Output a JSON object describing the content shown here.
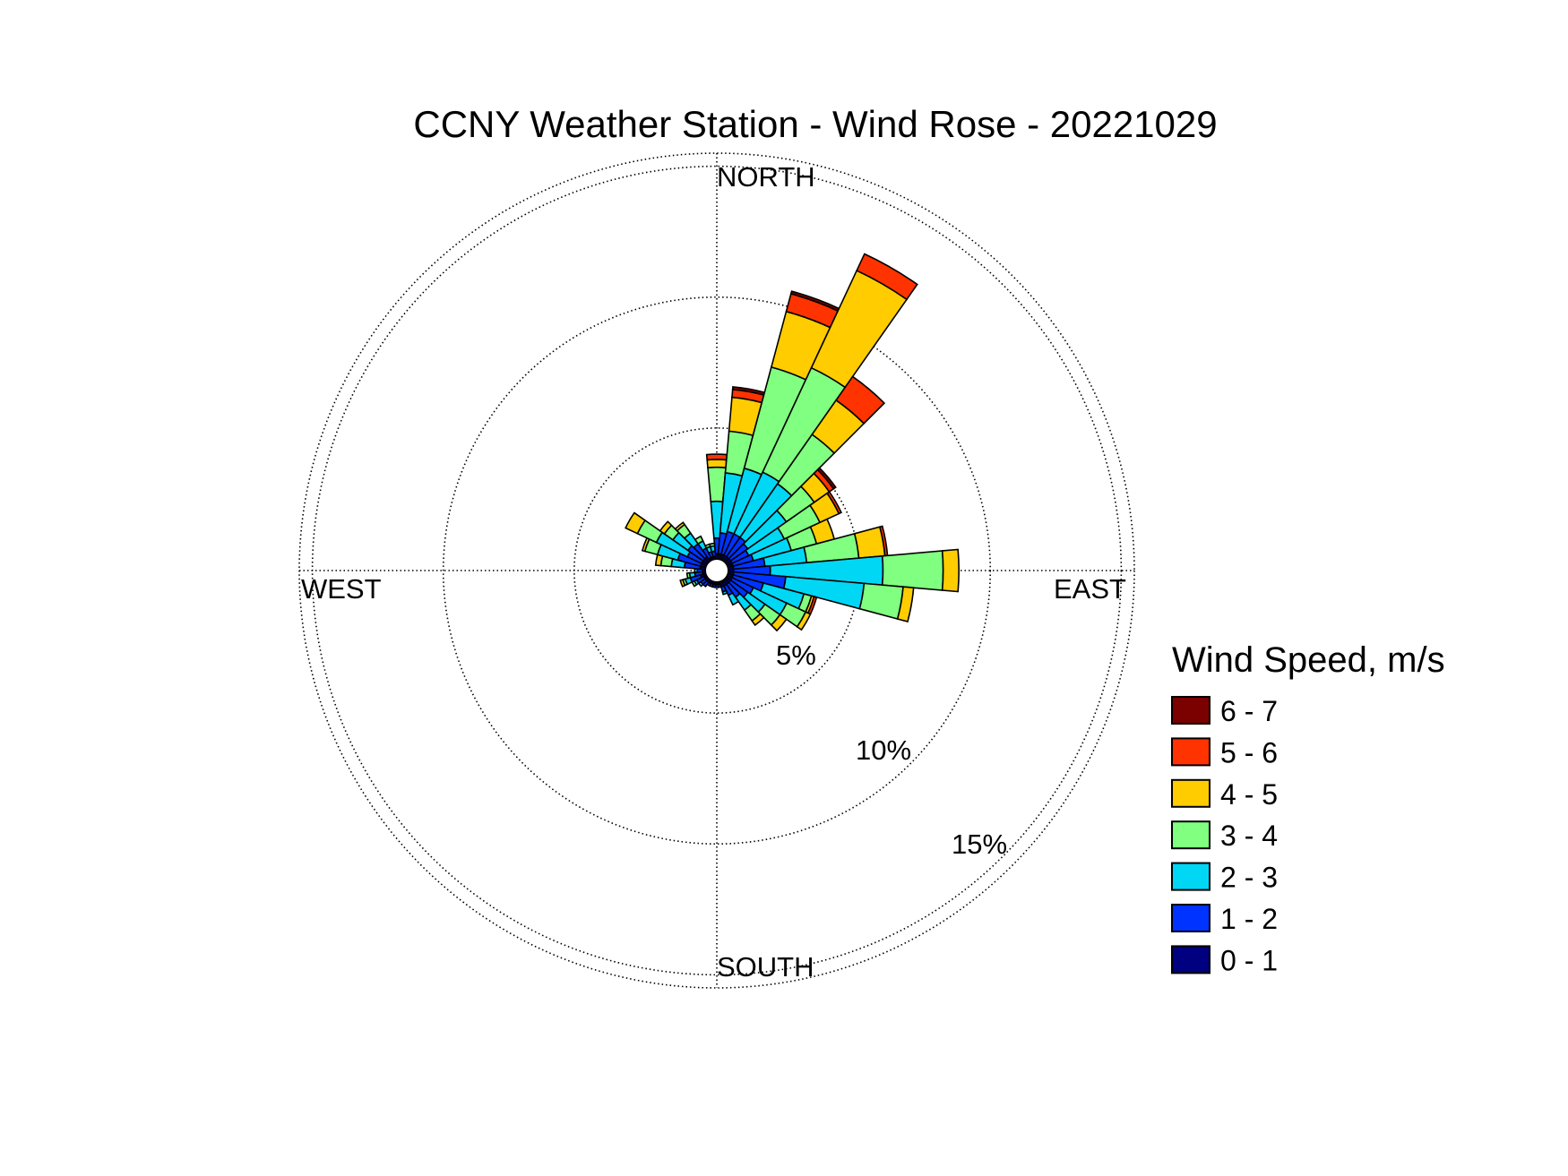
{
  "chart_data": {
    "type": "polar-stacked-bar",
    "title": "CCNY Weather Station - Wind Rose - 20221029",
    "direction_labels": {
      "north": "NORTH",
      "east": "EAST",
      "south": "SOUTH",
      "west": "WEST"
    },
    "radial_unit": "%",
    "radial_ticks": [
      {
        "value": 5,
        "label": "5%"
      },
      {
        "value": 10,
        "label": "10%"
      },
      {
        "value": 15,
        "label": "15%"
      }
    ],
    "rmax": 15.5,
    "grid": true,
    "legend": {
      "title": "Wind Speed, m/s",
      "placement": "right",
      "bins": [
        {
          "label": "6 - 7",
          "color": "#7b0000"
        },
        {
          "label": "5 - 6",
          "color": "#ff3300"
        },
        {
          "label": "4 - 5",
          "color": "#ffcc00"
        },
        {
          "label": "3 - 4",
          "color": "#80ff80"
        },
        {
          "label": "2 - 3",
          "color": "#00d7f5"
        },
        {
          "label": "1 - 2",
          "color": "#0033ff"
        },
        {
          "label": "0 - 1",
          "color": "#000080"
        }
      ]
    },
    "speed_bins_low_to_high": [
      "0 - 1",
      "1 - 2",
      "2 - 3",
      "3 - 4",
      "4 - 5",
      "5 - 6",
      "6 - 7"
    ],
    "sectors": [
      {
        "direction_deg": 0,
        "values": [
          0.2,
          0.6,
          1.4,
          1.3,
          0.3,
          0.2,
          0.0
        ]
      },
      {
        "direction_deg": 10,
        "values": [
          0.2,
          0.8,
          2.3,
          1.6,
          1.3,
          0.3,
          0.1
        ]
      },
      {
        "direction_deg": 20,
        "values": [
          0.2,
          0.9,
          2.5,
          4.0,
          2.2,
          0.7,
          0.1
        ]
      },
      {
        "direction_deg": 30,
        "values": [
          0.2,
          0.9,
          2.6,
          4.4,
          4.1,
          0.7,
          0.0
        ]
      },
      {
        "direction_deg": 40,
        "values": [
          0.2,
          0.9,
          2.5,
          2.3,
          1.6,
          1.1,
          0.0
        ]
      },
      {
        "direction_deg": 50,
        "values": [
          0.2,
          0.8,
          1.8,
          1.3,
          0.7,
          0.2,
          0.1
        ]
      },
      {
        "direction_deg": 60,
        "values": [
          0.2,
          0.7,
          1.5,
          1.5,
          0.8,
          0.1,
          0.0
        ]
      },
      {
        "direction_deg": 70,
        "values": [
          0.2,
          0.8,
          1.5,
          1.0,
          0.7,
          0.0,
          0.0
        ]
      },
      {
        "direction_deg": 80,
        "values": [
          0.2,
          1.2,
          1.6,
          2.0,
          1.0,
          0.1,
          0.0
        ]
      },
      {
        "direction_deg": 90,
        "values": [
          0.2,
          1.4,
          4.3,
          2.3,
          0.6,
          0.0,
          0.0
        ]
      },
      {
        "direction_deg": 100,
        "values": [
          0.2,
          2.0,
          3.0,
          1.5,
          0.4,
          0.0,
          0.0
        ]
      },
      {
        "direction_deg": 110,
        "values": [
          0.2,
          1.2,
          1.6,
          0.3,
          0.1,
          0.1,
          0.0
        ]
      },
      {
        "direction_deg": 120,
        "values": [
          0.2,
          0.9,
          1.4,
          0.8,
          0.2,
          0.0,
          0.0
        ]
      },
      {
        "direction_deg": 130,
        "values": [
          0.2,
          0.8,
          0.8,
          0.7,
          0.3,
          0.0,
          0.0
        ]
      },
      {
        "direction_deg": 140,
        "values": [
          0.2,
          0.6,
          0.6,
          0.5,
          0.2,
          0.0,
          0.0
        ]
      },
      {
        "direction_deg": 150,
        "values": [
          0.2,
          0.4,
          0.4,
          0.0,
          0.0,
          0.0,
          0.0
        ]
      },
      {
        "direction_deg": 160,
        "values": [
          0.2,
          0.2,
          0.1,
          0.0,
          0.0,
          0.0,
          0.0
        ]
      },
      {
        "direction_deg": 170,
        "values": [
          0.1,
          0.1,
          0.0,
          0.0,
          0.0,
          0.0,
          0.0
        ]
      },
      {
        "direction_deg": 180,
        "values": [
          0.1,
          0.1,
          0.0,
          0.0,
          0.0,
          0.0,
          0.0
        ]
      },
      {
        "direction_deg": 190,
        "values": [
          0.1,
          0.1,
          0.0,
          0.0,
          0.0,
          0.0,
          0.0
        ]
      },
      {
        "direction_deg": 200,
        "values": [
          0.1,
          0.1,
          0.0,
          0.0,
          0.0,
          0.0,
          0.0
        ]
      },
      {
        "direction_deg": 210,
        "values": [
          0.1,
          0.1,
          0.0,
          0.0,
          0.0,
          0.0,
          0.0
        ]
      },
      {
        "direction_deg": 220,
        "values": [
          0.1,
          0.2,
          0.0,
          0.0,
          0.0,
          0.0,
          0.0
        ]
      },
      {
        "direction_deg": 230,
        "values": [
          0.1,
          0.2,
          0.1,
          0.0,
          0.0,
          0.0,
          0.0
        ]
      },
      {
        "direction_deg": 240,
        "values": [
          0.1,
          0.3,
          0.1,
          0.1,
          0.0,
          0.0,
          0.0
        ]
      },
      {
        "direction_deg": 250,
        "values": [
          0.2,
          0.4,
          0.2,
          0.1,
          0.1,
          0.0,
          0.0
        ]
      },
      {
        "direction_deg": 260,
        "values": [
          0.1,
          0.3,
          0.2,
          0.1,
          0.0,
          0.0,
          0.0
        ]
      },
      {
        "direction_deg": 270,
        "values": [
          0.1,
          0.2,
          0.1,
          0.0,
          0.0,
          0.0,
          0.0
        ]
      },
      {
        "direction_deg": 280,
        "values": [
          0.2,
          0.6,
          0.5,
          0.4,
          0.2,
          0.0,
          0.0
        ]
      },
      {
        "direction_deg": 290,
        "values": [
          0.2,
          0.9,
          0.8,
          0.5,
          0.1,
          0.0,
          0.0
        ]
      },
      {
        "direction_deg": 300,
        "values": [
          0.2,
          0.6,
          1.3,
          0.8,
          0.5,
          0.0,
          0.0
        ]
      },
      {
        "direction_deg": 310,
        "values": [
          0.2,
          0.7,
          0.7,
          0.4,
          0.2,
          0.0,
          0.0
        ]
      },
      {
        "direction_deg": 320,
        "values": [
          0.2,
          0.6,
          0.5,
          0.4,
          0.1,
          0.0,
          0.0
        ]
      },
      {
        "direction_deg": 330,
        "values": [
          0.1,
          0.4,
          0.3,
          0.2,
          0.0,
          0.0,
          0.0
        ]
      },
      {
        "direction_deg": 340,
        "values": [
          0.1,
          0.2,
          0.2,
          0.1,
          0.0,
          0.0,
          0.0
        ]
      },
      {
        "direction_deg": 350,
        "values": [
          0.1,
          0.2,
          0.2,
          0.1,
          0.0,
          0.0,
          0.0
        ]
      }
    ]
  }
}
